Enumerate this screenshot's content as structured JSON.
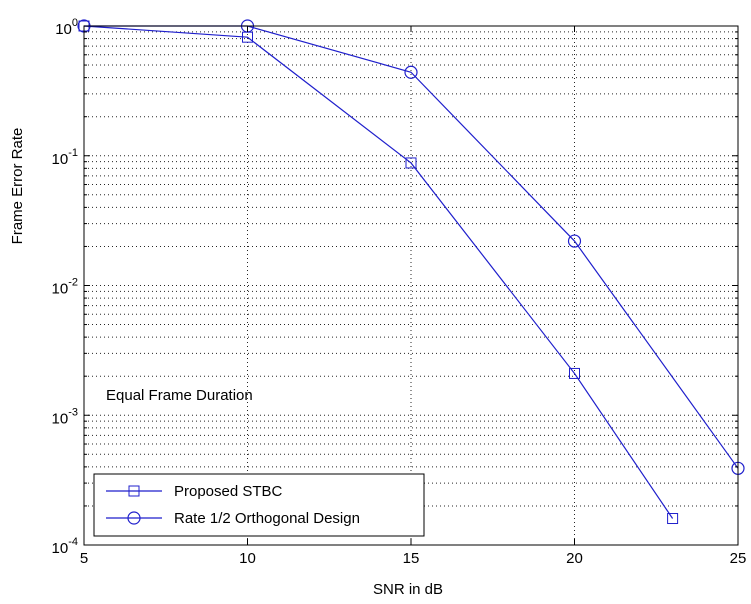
{
  "chart_data": {
    "type": "line",
    "xlabel": "SNR in dB",
    "ylabel": "Frame Error Rate",
    "xlim": [
      5,
      25
    ],
    "ylim": [
      0.0001,
      1
    ],
    "yscale": "log",
    "grid": true,
    "legend_position": "bottom-left",
    "annotation": "Equal Frame Duration",
    "x_ticks": [
      "5",
      "10",
      "15",
      "20",
      "25"
    ],
    "y_ticks": [
      {
        "base": "10",
        "exp": "0"
      },
      {
        "base": "10",
        "exp": "-1"
      },
      {
        "base": "10",
        "exp": "-2"
      },
      {
        "base": "10",
        "exp": "-3"
      },
      {
        "base": "10",
        "exp": "-4"
      }
    ],
    "series": [
      {
        "name": "Proposed STBC",
        "marker": "square",
        "color": "#1f1fcc",
        "x": [
          5,
          10,
          15,
          20,
          23
        ],
        "y": [
          1.0,
          0.82,
          0.088,
          0.0021,
          0.00016
        ]
      },
      {
        "name": "Rate 1/2 Orthogonal Design",
        "marker": "circle",
        "color": "#1f1fcc",
        "x": [
          5,
          10,
          15,
          20,
          25
        ],
        "y": [
          1.0,
          1.0,
          0.44,
          0.022,
          0.00039
        ]
      }
    ]
  }
}
